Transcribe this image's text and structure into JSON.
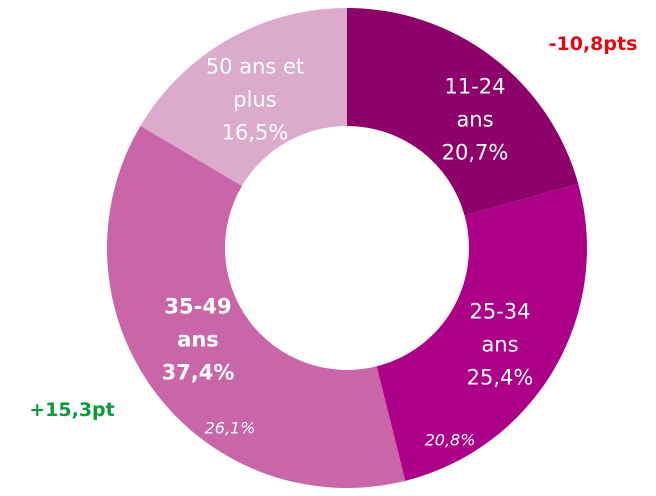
{
  "chart_data": {
    "type": "donut",
    "categories": [
      "11-24 ans",
      "25-34 ans",
      "35-49 ans",
      "50 ans et plus"
    ],
    "values": [
      20.7,
      25.4,
      37.4,
      16.5
    ],
    "value_labels": [
      "20,7%",
      "25,4%",
      "37,4%",
      "16,5%"
    ],
    "colors": [
      "#8e006a",
      "#ac0088",
      "#c866a7",
      "#dcaacb"
    ],
    "annotations": [
      {
        "text": "-10,8pts",
        "color": "#e30613"
      },
      {
        "text": "+15,3pt",
        "color": "#0a9a3c"
      },
      {
        "text": "26,1%",
        "color": "#ffffff"
      },
      {
        "text": "20,8%",
        "color": "#ffffff"
      }
    ]
  }
}
